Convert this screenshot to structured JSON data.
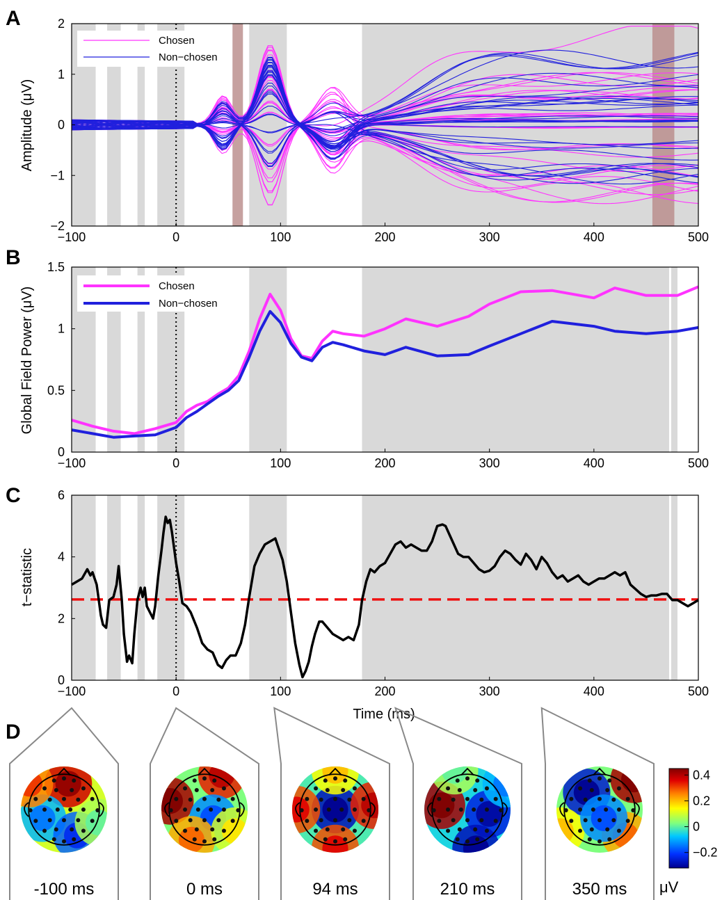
{
  "chart_data": [
    {
      "panel": "A",
      "type": "line",
      "ylabel": "Amplitude (μV)",
      "xlabel": "",
      "xlim": [
        -100,
        500
      ],
      "ylim": [
        -2,
        2
      ],
      "xticks": [
        -100,
        0,
        100,
        200,
        300,
        400,
        500
      ],
      "yticks": [
        -2,
        -1,
        0,
        1,
        2
      ],
      "grid": false,
      "legend": {
        "position": "top-left",
        "entries": [
          {
            "name": "Chosen",
            "color": "#ff33ff"
          },
          {
            "name": "Non−chosen",
            "color": "#2020dd"
          }
        ]
      },
      "n_channels_per_condition": 32,
      "channel_peak_amplitudes_near_90ms": [
        1.8,
        1.7,
        1.5,
        1.3,
        1.2,
        1.0,
        0.8,
        0.5,
        0.3,
        -0.2,
        -0.5,
        -0.8,
        -1.0,
        -1.2,
        -1.4,
        -1.6
      ],
      "channel_amplitudes_at_500ms": [
        1.75,
        1.2,
        0.9,
        0.65,
        0.6,
        0.45,
        0.2,
        0.1,
        -0.05,
        -0.45,
        -0.55,
        -0.8,
        -0.95,
        -1.2,
        -1.35
      ],
      "shaded_significant_intervals_ms": [
        [
          -100,
          -77
        ],
        [
          -66,
          -53
        ],
        [
          -37,
          -30
        ],
        [
          -18,
          8
        ],
        [
          70,
          106
        ],
        [
          178,
          500
        ]
      ],
      "highlighted_intervals_ms": [
        [
          54,
          64
        ],
        [
          456,
          477
        ]
      ]
    },
    {
      "panel": "B",
      "type": "line",
      "ylabel": "Global Field Power (μV)",
      "xlabel": "",
      "xlim": [
        -100,
        500
      ],
      "ylim": [
        0,
        1.5
      ],
      "xticks": [
        -100,
        0,
        100,
        200,
        300,
        400,
        500
      ],
      "yticks": [
        0,
        0.5,
        1,
        1.5
      ],
      "grid": false,
      "legend": {
        "position": "top-left"
      },
      "x": [
        -100,
        -80,
        -60,
        -40,
        -20,
        0,
        10,
        20,
        30,
        40,
        50,
        60,
        70,
        80,
        90,
        100,
        110,
        120,
        130,
        140,
        150,
        160,
        180,
        200,
        220,
        250,
        280,
        300,
        330,
        360,
        400,
        420,
        450,
        480,
        500
      ],
      "series": [
        {
          "name": "Chosen",
          "color": "#ff33ff",
          "values": [
            0.26,
            0.21,
            0.17,
            0.15,
            0.19,
            0.24,
            0.33,
            0.38,
            0.41,
            0.47,
            0.52,
            0.62,
            0.82,
            1.08,
            1.28,
            1.15,
            0.92,
            0.78,
            0.76,
            0.9,
            0.98,
            0.96,
            0.94,
            1.0,
            1.08,
            1.02,
            1.1,
            1.2,
            1.3,
            1.31,
            1.25,
            1.33,
            1.27,
            1.27,
            1.34
          ]
        },
        {
          "name": "Non−chosen",
          "color": "#2020dd",
          "values": [
            0.18,
            0.15,
            0.12,
            0.13,
            0.14,
            0.2,
            0.28,
            0.33,
            0.39,
            0.45,
            0.5,
            0.58,
            0.77,
            0.98,
            1.14,
            1.05,
            0.88,
            0.77,
            0.74,
            0.85,
            0.89,
            0.87,
            0.82,
            0.79,
            0.85,
            0.78,
            0.79,
            0.86,
            0.96,
            1.06,
            1.02,
            0.98,
            0.96,
            0.98,
            1.01
          ]
        }
      ],
      "shaded_significant_intervals_ms": [
        [
          -100,
          -77
        ],
        [
          -66,
          -53
        ],
        [
          -37,
          -30
        ],
        [
          -18,
          8
        ],
        [
          70,
          106
        ],
        [
          178,
          472
        ],
        [
          474,
          480
        ]
      ]
    },
    {
      "panel": "C",
      "type": "line",
      "ylabel": "t−statistic",
      "xlabel": "Time (ms)",
      "xlim": [
        -100,
        500
      ],
      "ylim": [
        0,
        6
      ],
      "xticks": [
        -100,
        0,
        100,
        200,
        300,
        400,
        500
      ],
      "yticks": [
        0,
        2,
        4,
        6
      ],
      "grid": false,
      "threshold": 2.62,
      "x": [
        -100,
        -90,
        -85,
        -82,
        -80,
        -76,
        -72,
        -70,
        -67,
        -64,
        -60,
        -57,
        -55,
        -52,
        -50,
        -47,
        -45,
        -42,
        -40,
        -37,
        -34,
        -32,
        -30,
        -28,
        -25,
        -22,
        -20,
        -17,
        -14,
        -12,
        -10,
        -8,
        -6,
        -4,
        -2,
        0,
        3,
        6,
        10,
        14,
        20,
        25,
        30,
        35,
        40,
        44,
        48,
        52,
        57,
        62,
        66,
        70,
        75,
        80,
        85,
        90,
        95,
        98,
        102,
        106,
        110,
        114,
        118,
        121,
        124,
        127,
        130,
        133,
        137,
        140,
        145,
        150,
        155,
        160,
        165,
        170,
        175,
        178,
        182,
        186,
        190,
        195,
        200,
        205,
        210,
        215,
        220,
        225,
        230,
        235,
        240,
        245,
        250,
        255,
        258,
        262,
        266,
        270,
        275,
        280,
        285,
        290,
        295,
        300,
        305,
        310,
        315,
        320,
        325,
        330,
        335,
        340,
        345,
        350,
        355,
        360,
        365,
        370,
        375,
        380,
        385,
        390,
        395,
        400,
        405,
        410,
        415,
        420,
        425,
        430,
        435,
        440,
        445,
        450,
        455,
        460,
        465,
        470,
        475,
        480,
        485,
        490,
        495,
        500
      ],
      "values": [
        3.1,
        3.3,
        3.6,
        3.4,
        3.5,
        3.1,
        2.1,
        1.8,
        1.7,
        2.6,
        2.7,
        3.1,
        3.7,
        2.6,
        1.5,
        0.6,
        0.8,
        0.55,
        1.5,
        2.6,
        3.0,
        2.7,
        3.0,
        2.4,
        2.2,
        2.0,
        2.4,
        3.4,
        4.2,
        4.8,
        5.3,
        5.1,
        5.2,
        4.8,
        4.3,
        3.8,
        3.2,
        2.5,
        2.4,
        2.2,
        1.7,
        1.2,
        1.0,
        0.9,
        0.5,
        0.4,
        0.65,
        0.8,
        0.8,
        1.2,
        1.8,
        2.7,
        3.7,
        4.1,
        4.4,
        4.5,
        4.6,
        4.3,
        3.9,
        3.2,
        2.2,
        1.2,
        0.5,
        0.1,
        0.3,
        0.6,
        1.1,
        1.5,
        1.9,
        1.9,
        1.7,
        1.5,
        1.4,
        1.3,
        1.4,
        1.3,
        1.8,
        2.6,
        3.2,
        3.6,
        3.5,
        3.7,
        3.8,
        4.1,
        4.4,
        4.5,
        4.3,
        4.4,
        4.3,
        4.2,
        4.2,
        4.5,
        5.0,
        5.05,
        5.0,
        4.7,
        4.4,
        4.1,
        4.0,
        4.0,
        3.8,
        3.6,
        3.5,
        3.55,
        3.7,
        4.0,
        4.2,
        4.1,
        3.9,
        3.75,
        4.1,
        3.9,
        3.6,
        4.0,
        3.8,
        3.5,
        3.3,
        3.4,
        3.2,
        3.3,
        3.4,
        3.2,
        3.1,
        3.2,
        3.3,
        3.3,
        3.4,
        3.5,
        3.4,
        3.5,
        3.1,
        2.95,
        2.8,
        2.7,
        2.75,
        2.75,
        2.8,
        2.8,
        2.6,
        2.6,
        2.5,
        2.4,
        2.5,
        2.6
      ],
      "shaded_significant_intervals_ms": [
        [
          -100,
          -77
        ],
        [
          -66,
          -53
        ],
        [
          -37,
          -30
        ],
        [
          -18,
          8
        ],
        [
          70,
          106
        ],
        [
          178,
          472
        ],
        [
          474,
          480
        ]
      ]
    }
  ],
  "panel_labels": {
    "a": "A",
    "b": "B",
    "c": "C",
    "d": "D"
  },
  "topomaps": [
    {
      "label": "-100 ms",
      "time_ms": -100
    },
    {
      "label": "0 ms",
      "time_ms": 0
    },
    {
      "label": "94 ms",
      "time_ms": 94
    },
    {
      "label": "210 ms",
      "time_ms": 210
    },
    {
      "label": "350 ms",
      "time_ms": 350
    }
  ],
  "colorbar": {
    "ticks": [
      "0.4",
      "0.2",
      "0",
      "−0.2"
    ],
    "tick_values": [
      0.4,
      0.2,
      0,
      -0.2
    ],
    "range": [
      -0.32,
      0.45
    ],
    "unit": "μV",
    "colors": [
      "#00008f",
      "#0050ff",
      "#00d8ff",
      "#7fff7f",
      "#ffff00",
      "#ff7000",
      "#c00000",
      "#800000"
    ]
  }
}
